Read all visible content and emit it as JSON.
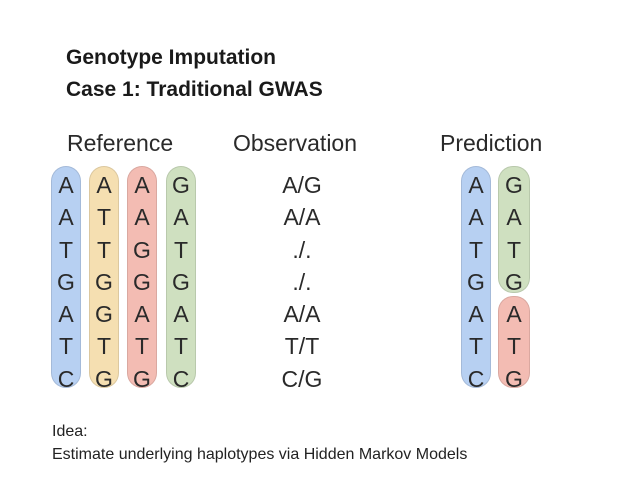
{
  "title": {
    "line1": "Genotype Imputation",
    "line2": "Case 1: Traditional GWAS"
  },
  "headings": {
    "reference": "Reference",
    "observation": "Observation",
    "prediction": "Prediction"
  },
  "reference_haplotypes": [
    {
      "color": "#b7d0f2",
      "bases": [
        "A",
        "A",
        "T",
        "G",
        "A",
        "T",
        "C"
      ]
    },
    {
      "color": "#f5dfb1",
      "bases": [
        "A",
        "T",
        "T",
        "G",
        "G",
        "T",
        "G"
      ]
    },
    {
      "color": "#f3bcb3",
      "bases": [
        "A",
        "A",
        "G",
        "G",
        "A",
        "T",
        "G"
      ]
    },
    {
      "color": "#cfe0c0",
      "bases": [
        "G",
        "A",
        "T",
        "G",
        "A",
        "T",
        "C"
      ]
    }
  ],
  "observation": [
    "A/G",
    "A/A",
    "./.",
    "./.",
    "A/A",
    "T/T",
    "C/G"
  ],
  "prediction": {
    "left": {
      "color": "#b7d0f2",
      "bases": [
        "A",
        "A",
        "T",
        "G",
        "A",
        "T",
        "C"
      ]
    },
    "right_top": {
      "color": "#cfe0c0",
      "bases": [
        "G",
        "A",
        "T",
        "G"
      ]
    },
    "right_bottom": {
      "color": "#f3bcb3",
      "bases": [
        "A",
        "T",
        "G"
      ]
    }
  },
  "idea": {
    "line1": "Idea:",
    "line2": "Estimate underlying haplotypes via Hidden Markov Models"
  }
}
